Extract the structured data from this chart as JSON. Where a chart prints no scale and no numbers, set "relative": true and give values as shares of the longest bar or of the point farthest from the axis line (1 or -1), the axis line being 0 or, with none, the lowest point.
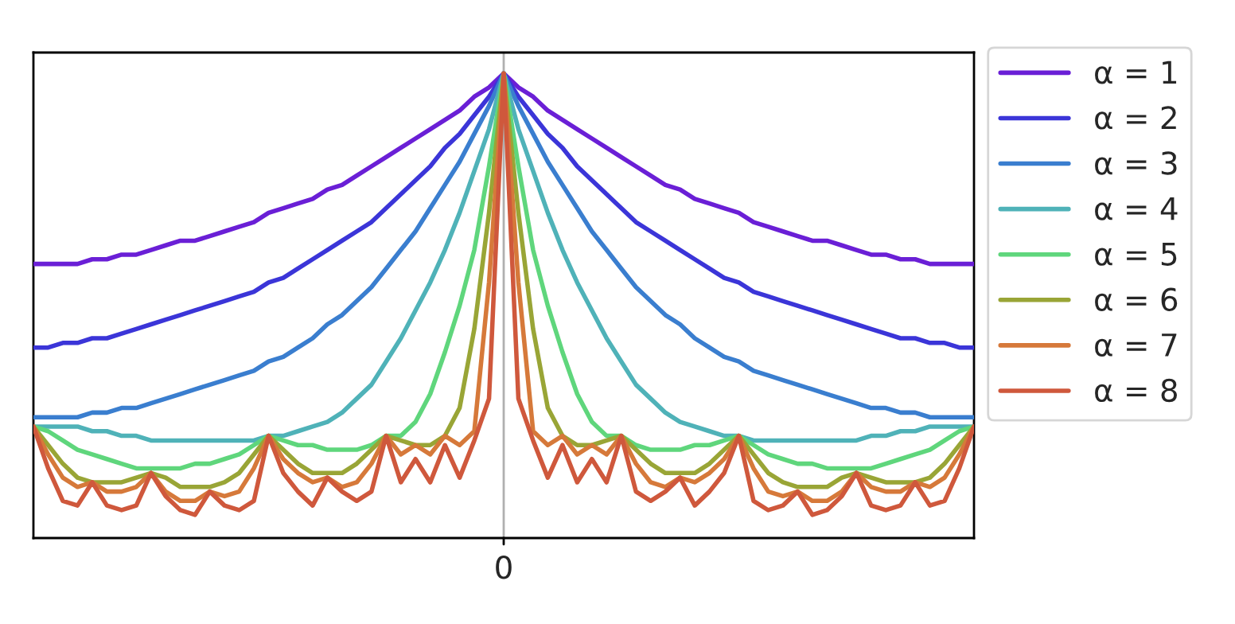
{
  "chart_data": {
    "type": "line",
    "relative": true,
    "legend": "right",
    "line_style": "solid",
    "categories": [
      null,
      null,
      null,
      null,
      null,
      null,
      null,
      null,
      null,
      null,
      null,
      null,
      null,
      null,
      null,
      null,
      null,
      null,
      null,
      null,
      null,
      null,
      null,
      null,
      null,
      null,
      null,
      null,
      null,
      null,
      null,
      null,
      null,
      null,
      null,
      null,
      null,
      null,
      null,
      null,
      null,
      null,
      null,
      null,
      null,
      null,
      null,
      null,
      null,
      null,
      null,
      null,
      null,
      null,
      null,
      null,
      null,
      null,
      null,
      null,
      null,
      null,
      null,
      null,
      null
    ],
    "annotations": [
      "0"
    ],
    "series": [
      {
        "name": "α = 1",
        "color": "#6a1fd6",
        "values": [
          0.59,
          0.59,
          0.59,
          0.59,
          0.6,
          0.6,
          0.61,
          0.61,
          0.62,
          0.63,
          0.64,
          0.64,
          0.65,
          0.66,
          0.67,
          0.68,
          0.7,
          0.71,
          0.72,
          0.73,
          0.75,
          0.76,
          0.78,
          0.8,
          0.82,
          0.84,
          0.86,
          0.88,
          0.9,
          0.92,
          0.95,
          0.97,
          1.0,
          0.97,
          0.95,
          0.92,
          0.9,
          0.88,
          0.86,
          0.84,
          0.82,
          0.8,
          0.78,
          0.76,
          0.75,
          0.73,
          0.72,
          0.71,
          0.7,
          0.68,
          0.67,
          0.66,
          0.65,
          0.64,
          0.64,
          0.63,
          0.62,
          0.61,
          0.61,
          0.6,
          0.6,
          0.59,
          0.59,
          0.59,
          0.59
        ]
      },
      {
        "name": "α = 2",
        "color": "#3b35d8",
        "values": [
          0.41,
          0.41,
          0.42,
          0.42,
          0.43,
          0.43,
          0.44,
          0.45,
          0.46,
          0.47,
          0.48,
          0.49,
          0.5,
          0.51,
          0.52,
          0.53,
          0.55,
          0.56,
          0.58,
          0.6,
          0.62,
          0.64,
          0.66,
          0.68,
          0.71,
          0.74,
          0.77,
          0.8,
          0.84,
          0.87,
          0.91,
          0.95,
          1.0,
          0.95,
          0.91,
          0.87,
          0.84,
          0.8,
          0.77,
          0.74,
          0.71,
          0.68,
          0.66,
          0.64,
          0.62,
          0.6,
          0.58,
          0.56,
          0.55,
          0.53,
          0.52,
          0.51,
          0.5,
          0.49,
          0.48,
          0.47,
          0.46,
          0.45,
          0.44,
          0.43,
          0.43,
          0.42,
          0.42,
          0.41,
          0.41
        ]
      },
      {
        "name": "α = 3",
        "color": "#3a7ecf",
        "values": [
          0.26,
          0.26,
          0.26,
          0.26,
          0.27,
          0.27,
          0.28,
          0.28,
          0.29,
          0.3,
          0.31,
          0.32,
          0.33,
          0.34,
          0.35,
          0.36,
          0.38,
          0.39,
          0.41,
          0.43,
          0.46,
          0.48,
          0.51,
          0.54,
          0.58,
          0.62,
          0.66,
          0.71,
          0.76,
          0.81,
          0.87,
          0.93,
          1.0,
          0.93,
          0.87,
          0.81,
          0.76,
          0.71,
          0.66,
          0.62,
          0.58,
          0.54,
          0.51,
          0.48,
          0.46,
          0.43,
          0.41,
          0.39,
          0.38,
          0.36,
          0.35,
          0.34,
          0.33,
          0.32,
          0.31,
          0.3,
          0.29,
          0.28,
          0.28,
          0.27,
          0.27,
          0.26,
          0.26,
          0.26,
          0.26
        ]
      },
      {
        "name": "α = 4",
        "color": "#4fb2b8",
        "values": [
          0.24,
          0.24,
          0.24,
          0.24,
          0.23,
          0.23,
          0.22,
          0.22,
          0.21,
          0.21,
          0.21,
          0.21,
          0.21,
          0.21,
          0.21,
          0.21,
          0.22,
          0.22,
          0.23,
          0.24,
          0.25,
          0.27,
          0.3,
          0.33,
          0.38,
          0.43,
          0.49,
          0.55,
          0.62,
          0.7,
          0.79,
          0.88,
          1.0,
          0.88,
          0.79,
          0.7,
          0.62,
          0.55,
          0.49,
          0.43,
          0.38,
          0.33,
          0.3,
          0.27,
          0.25,
          0.24,
          0.23,
          0.22,
          0.22,
          0.21,
          0.21,
          0.21,
          0.21,
          0.21,
          0.21,
          0.21,
          0.21,
          0.22,
          0.22,
          0.23,
          0.23,
          0.24,
          0.24,
          0.24,
          0.24
        ]
      },
      {
        "name": "α = 5",
        "color": "#5fd67c",
        "values": [
          0.24,
          0.23,
          0.21,
          0.19,
          0.18,
          0.17,
          0.16,
          0.15,
          0.15,
          0.15,
          0.15,
          0.16,
          0.16,
          0.17,
          0.18,
          0.2,
          0.22,
          0.21,
          0.2,
          0.2,
          0.19,
          0.19,
          0.19,
          0.2,
          0.22,
          0.22,
          0.25,
          0.31,
          0.4,
          0.5,
          0.62,
          0.8,
          1.0,
          0.8,
          0.62,
          0.5,
          0.4,
          0.31,
          0.25,
          0.22,
          0.22,
          0.2,
          0.19,
          0.19,
          0.19,
          0.2,
          0.2,
          0.21,
          0.22,
          0.2,
          0.18,
          0.17,
          0.16,
          0.16,
          0.15,
          0.15,
          0.15,
          0.15,
          0.16,
          0.17,
          0.18,
          0.19,
          0.21,
          0.23,
          0.24
        ]
      },
      {
        "name": "α = 6",
        "color": "#99a536",
        "values": [
          0.24,
          0.2,
          0.16,
          0.13,
          0.12,
          0.12,
          0.12,
          0.13,
          0.14,
          0.13,
          0.11,
          0.11,
          0.11,
          0.12,
          0.14,
          0.18,
          0.22,
          0.19,
          0.16,
          0.14,
          0.14,
          0.14,
          0.16,
          0.19,
          0.22,
          0.21,
          0.2,
          0.2,
          0.22,
          0.28,
          0.45,
          0.7,
          1.0,
          0.7,
          0.45,
          0.28,
          0.22,
          0.2,
          0.2,
          0.21,
          0.22,
          0.19,
          0.16,
          0.14,
          0.14,
          0.14,
          0.16,
          0.19,
          0.22,
          0.18,
          0.14,
          0.12,
          0.11,
          0.11,
          0.11,
          0.13,
          0.14,
          0.13,
          0.12,
          0.12,
          0.12,
          0.13,
          0.16,
          0.2,
          0.24
        ]
      },
      {
        "name": "α = 7",
        "color": "#d6793a",
        "values": [
          0.24,
          0.18,
          0.13,
          0.11,
          0.12,
          0.1,
          0.1,
          0.11,
          0.14,
          0.1,
          0.08,
          0.08,
          0.1,
          0.09,
          0.1,
          0.15,
          0.22,
          0.17,
          0.14,
          0.12,
          0.13,
          0.11,
          0.12,
          0.16,
          0.22,
          0.18,
          0.2,
          0.18,
          0.22,
          0.2,
          0.23,
          0.55,
          1.0,
          0.55,
          0.23,
          0.2,
          0.22,
          0.18,
          0.2,
          0.18,
          0.22,
          0.16,
          0.12,
          0.11,
          0.13,
          0.12,
          0.14,
          0.17,
          0.22,
          0.15,
          0.1,
          0.09,
          0.1,
          0.08,
          0.08,
          0.1,
          0.14,
          0.11,
          0.1,
          0.1,
          0.12,
          0.11,
          0.13,
          0.18,
          0.24
        ]
      },
      {
        "name": "α = 8",
        "color": "#cf583c",
        "values": [
          0.24,
          0.15,
          0.08,
          0.07,
          0.12,
          0.07,
          0.06,
          0.07,
          0.14,
          0.09,
          0.06,
          0.05,
          0.1,
          0.07,
          0.06,
          0.08,
          0.22,
          0.14,
          0.1,
          0.07,
          0.13,
          0.1,
          0.08,
          0.1,
          0.22,
          0.12,
          0.17,
          0.12,
          0.2,
          0.13,
          0.21,
          0.3,
          1.0,
          0.3,
          0.21,
          0.13,
          0.2,
          0.12,
          0.17,
          0.12,
          0.22,
          0.1,
          0.08,
          0.1,
          0.13,
          0.07,
          0.1,
          0.14,
          0.22,
          0.08,
          0.06,
          0.07,
          0.1,
          0.05,
          0.06,
          0.09,
          0.14,
          0.07,
          0.06,
          0.07,
          0.12,
          0.07,
          0.08,
          0.15,
          0.24
        ]
      }
    ]
  }
}
